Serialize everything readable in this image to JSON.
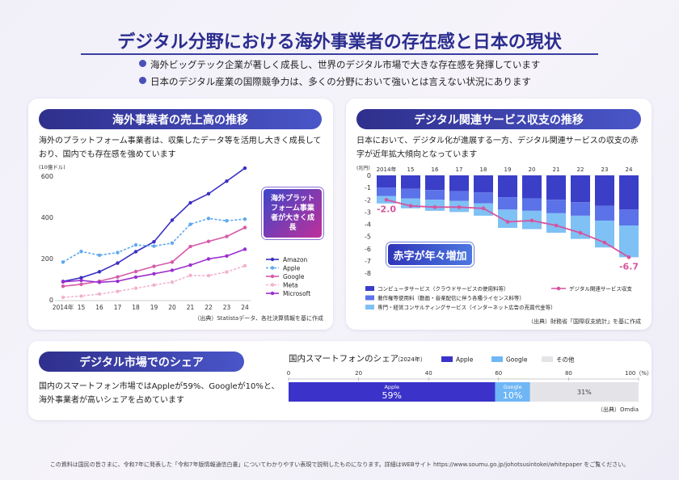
{
  "header": {
    "title": "デジタル分野における海外事業者の存在感と日本の現状",
    "bullets": [
      "海外ビッグテック企業が著しく成長し、世界のデジタル市場で大きな存在感を発揮しています",
      "日本のデジタル産業の国際競争力は、多くの分野において強いとは言えない状況にあります"
    ]
  },
  "sections": [
    {
      "title": "海外事業者の売上高の推移",
      "description": "海外のプラットフォーム事業者は、収集したデータ等を活用し大きく成長しており、国内でも存在感を強めています",
      "source": "（出典）Statistaデータ、各社決算情報を基に作成"
    },
    {
      "title": "デジタル関連サービス収支の推移",
      "description": "日本において、デジタル化が進展する一方、デジタル関連サービスの収支の赤字が近年拡大傾向となっています",
      "source": "（出典）財務省「国際収支統計」を基に作成"
    },
    {
      "title": "デジタル市場でのシェア",
      "description": "国内のスマートフォン市場ではAppleが59%、Googleが10%と、海外事業者が高いシェアを占めています",
      "source": "（出典）Omdia"
    }
  ],
  "chart_data": [
    {
      "type": "line",
      "y_label": "(10億ドル)",
      "categories": [
        "2014年",
        "15",
        "16",
        "17",
        "18",
        "19",
        "20",
        "21",
        "22",
        "23",
        "24"
      ],
      "ylim": [
        0,
        650
      ],
      "yticks": [
        0,
        200,
        400,
        600
      ],
      "annotation": "海外プラットフォーム事業者が大きく成長",
      "legend": "right",
      "series": [
        {
          "name": "Amazon",
          "color": "#3a2fc4",
          "style": "solid",
          "values": [
            89,
            107,
            136,
            178,
            233,
            281,
            386,
            470,
            514,
            575,
            638
          ]
        },
        {
          "name": "Apple",
          "color": "#5fa8ef",
          "style": "dashed",
          "values": [
            183,
            234,
            216,
            229,
            266,
            260,
            275,
            366,
            394,
            383,
            391
          ]
        },
        {
          "name": "Google",
          "color": "#d65aa8",
          "style": "solid",
          "values": [
            66,
            75,
            90,
            111,
            137,
            162,
            183,
            258,
            283,
            307,
            350
          ]
        },
        {
          "name": "Meta",
          "color": "#f2b3d0",
          "style": "dashed",
          "values": [
            12,
            18,
            28,
            41,
            56,
            71,
            86,
            118,
            117,
            135,
            165
          ]
        },
        {
          "name": "Microsoft",
          "color": "#9a2fd0",
          "style": "solid",
          "values": [
            87,
            94,
            85,
            90,
            110,
            126,
            143,
            168,
            198,
            212,
            245
          ]
        }
      ]
    },
    {
      "type": "stacked_bar_line",
      "y_label": "(兆円)",
      "categories": [
        "2014年",
        "15",
        "16",
        "17",
        "18",
        "19",
        "20",
        "21",
        "22",
        "23",
        "24"
      ],
      "ylim": [
        -8,
        0
      ],
      "yticks": [
        0,
        -1,
        -2,
        -3,
        -4,
        -5,
        -6,
        -7,
        -8
      ],
      "annotation": "赤字が年々増加",
      "series": [
        {
          "name": "コンピュータサービス（クラウドサービスの使用料等）",
          "color": "#3b3fc8",
          "kind": "bar",
          "values": [
            -1.0,
            -1.1,
            -1.2,
            -1.3,
            -1.4,
            -1.8,
            -1.9,
            -2.0,
            -2.2,
            -2.5,
            -2.8
          ]
        },
        {
          "name": "著作権等使用料（動画・音楽配信に伴う各種ライセンス料等）",
          "color": "#5b72e8",
          "kind": "bar",
          "values": [
            -0.7,
            -0.8,
            -0.8,
            -0.8,
            -0.9,
            -1.0,
            -1.0,
            -1.1,
            -1.1,
            -1.2,
            -1.3
          ]
        },
        {
          "name": "専門・経営コンサルティングサービス（インターネット広告の売買代金等）",
          "color": "#7fc0f5",
          "kind": "bar",
          "values": [
            -0.6,
            -0.8,
            -0.9,
            -0.9,
            -1.0,
            -1.5,
            -1.5,
            -1.6,
            -1.9,
            -2.2,
            -2.6
          ]
        },
        {
          "name": "デジタル関連サービス収支",
          "color": "#d6549d",
          "kind": "line",
          "values": [
            -2.0,
            -2.5,
            -2.6,
            -2.6,
            -2.7,
            -3.8,
            -3.7,
            -4.1,
            -4.7,
            -5.5,
            -6.7
          ],
          "value_labels": [
            "-2.0",
            null,
            null,
            null,
            null,
            null,
            null,
            null,
            null,
            null,
            "-6.7"
          ]
        }
      ]
    },
    {
      "type": "stacked_hbar",
      "title": "国内スマートフォンのシェア",
      "subtitle": "（2024年）",
      "xlim": [
        0,
        100
      ],
      "xticks": [
        0,
        20,
        40,
        60,
        80,
        {
          "value": 100,
          "label": "100（%）"
        }
      ],
      "series": [
        {
          "name": "Apple",
          "color": "#3b33c9",
          "values": [
            59
          ],
          "value_labels": [
            "59%"
          ]
        },
        {
          "name": "Google",
          "color": "#6fb6f5",
          "values": [
            10
          ],
          "value_labels": [
            "10%"
          ]
        },
        {
          "name": "その他",
          "color": "#e4e4e8",
          "values": [
            31
          ],
          "value_labels": [
            "31%"
          ]
        }
      ]
    }
  ],
  "footer": "この資料は国民の皆さまに、令和7年に発表した「令和7年版情報通信白書」についてわかりやすい表現で説明したものになります。詳細はWEBサイト https://www.soumu.go.jp/johotsusintokei/whitepaper をご覧ください。"
}
